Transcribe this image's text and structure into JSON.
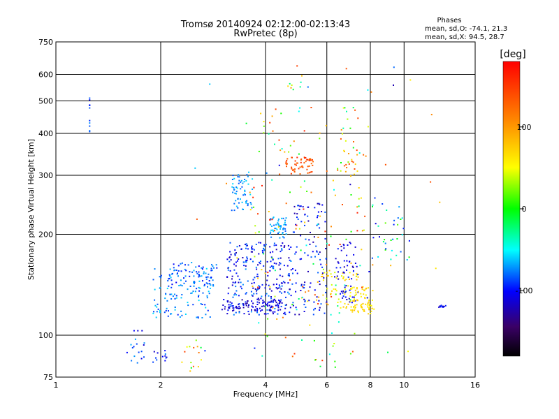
{
  "chart_data": {
    "type": "scatter",
    "title": "Tromsø 20140924 02:12:00-02:13:43",
    "subtitle": "RwPretec (8p)",
    "xlabel": "Frequency [MHz]",
    "ylabel": "Stationary phase Virtual Height [km]",
    "x_scale": "log",
    "y_scale": "log",
    "xlim": [
      1,
      16
    ],
    "ylim": [
      75,
      750
    ],
    "x_ticks": [
      1,
      2,
      4,
      6,
      8,
      10,
      16
    ],
    "x_tick_labels": [
      "1",
      "2",
      "4",
      "6",
      "8",
      "10",
      "16"
    ],
    "x_gridlines": [
      2,
      4,
      6,
      8,
      10
    ],
    "y_ticks": [
      75,
      100,
      200,
      300,
      400,
      500,
      600,
      750
    ],
    "y_tick_labels": [
      "75",
      "100",
      "200",
      "300",
      "400",
      "500",
      "600",
      "750"
    ],
    "y_gridlines": [
      100,
      200,
      300,
      400,
      500,
      600
    ],
    "grid": true,
    "stats": {
      "heading": "Phases",
      "line_o": "mean, sd,O: -74.1, 21.3",
      "line_x": "mean, sd,X:  94.5, 28.7"
    },
    "colorbar": {
      "label": "[deg]",
      "range": [
        -180,
        180
      ],
      "ticks": [
        100,
        0,
        -100
      ],
      "tick_labels": [
        "100",
        "0",
        "-100"
      ]
    },
    "clusters": [
      {
        "f": [
          1.25,
          1.25
        ],
        "h": [
          380,
          530
        ],
        "p": [
          -110,
          -70
        ],
        "n": 10
      },
      {
        "f": [
          1.6,
          1.8
        ],
        "h": [
          80,
          115
        ],
        "p": [
          -115,
          -60
        ],
        "n": 18
      },
      {
        "f": [
          1.9,
          2.1
        ],
        "h": [
          80,
          90
        ],
        "p": [
          -120,
          -75
        ],
        "n": 12
      },
      {
        "f": [
          2.3,
          2.7
        ],
        "h": [
          78,
          100
        ],
        "p": [
          -30,
          150
        ],
        "n": 14
      },
      {
        "f": [
          1.9,
          2.8
        ],
        "h": [
          112,
          160
        ],
        "p": [
          -95,
          -55
        ],
        "n": 120
      },
      {
        "f": [
          2.1,
          2.9
        ],
        "h": [
          140,
          165
        ],
        "p": [
          -110,
          -65
        ],
        "n": 60
      },
      {
        "f": [
          3.2,
          3.7
        ],
        "h": [
          235,
          310
        ],
        "p": [
          -85,
          -55
        ],
        "n": 60
      },
      {
        "f": [
          4.1,
          4.6
        ],
        "h": [
          195,
          225
        ],
        "p": [
          -85,
          -55
        ],
        "n": 50
      },
      {
        "f": [
          3.1,
          4.8
        ],
        "h": [
          115,
          190
        ],
        "p": [
          -125,
          -70
        ],
        "n": 270
      },
      {
        "f": [
          3.0,
          4.6
        ],
        "h": [
          118,
          128
        ],
        "p": [
          -130,
          -95
        ],
        "n": 90
      },
      {
        "f": [
          4.8,
          6.0
        ],
        "h": [
          115,
          250
        ],
        "p": [
          -130,
          -80
        ],
        "n": 110
      },
      {
        "f": [
          4.5,
          5.5
        ],
        "h": [
          300,
          340
        ],
        "p": [
          120,
          160
        ],
        "n": 55
      },
      {
        "f": [
          5.6,
          7.4
        ],
        "h": [
          120,
          155
        ],
        "p": [
          40,
          90
        ],
        "n": 60
      },
      {
        "f": [
          6.3,
          7.4
        ],
        "h": [
          125,
          190
        ],
        "p": [
          -125,
          -90
        ],
        "n": 60
      },
      {
        "f": [
          7.0,
          8.2
        ],
        "h": [
          115,
          140
        ],
        "p": [
          50,
          80
        ],
        "n": 70
      },
      {
        "f": [
          3.6,
          7.8
        ],
        "h": [
          80,
          480
        ],
        "p": [
          -60,
          170
        ],
        "n": 160
      },
      {
        "f": [
          6.4,
          7.4
        ],
        "h": [
          300,
          480
        ],
        "p": [
          -40,
          150
        ],
        "n": 30
      },
      {
        "f": [
          8,
          10.5
        ],
        "h": [
          160,
          260
        ],
        "p": [
          -110,
          30
        ],
        "n": 35
      },
      {
        "f": [
          4.6,
          5.3
        ],
        "h": [
          540,
          650
        ],
        "p": [
          -80,
          170
        ],
        "n": 10
      },
      {
        "f": [
          2.5,
          13
        ],
        "h": [
          85,
          640
        ],
        "p": [
          -140,
          160
        ],
        "n": 40
      },
      {
        "f": [
          12.5,
          13.2
        ],
        "h": [
          121,
          124
        ],
        "p": [
          -120,
          -90
        ],
        "n": 10
      }
    ]
  }
}
